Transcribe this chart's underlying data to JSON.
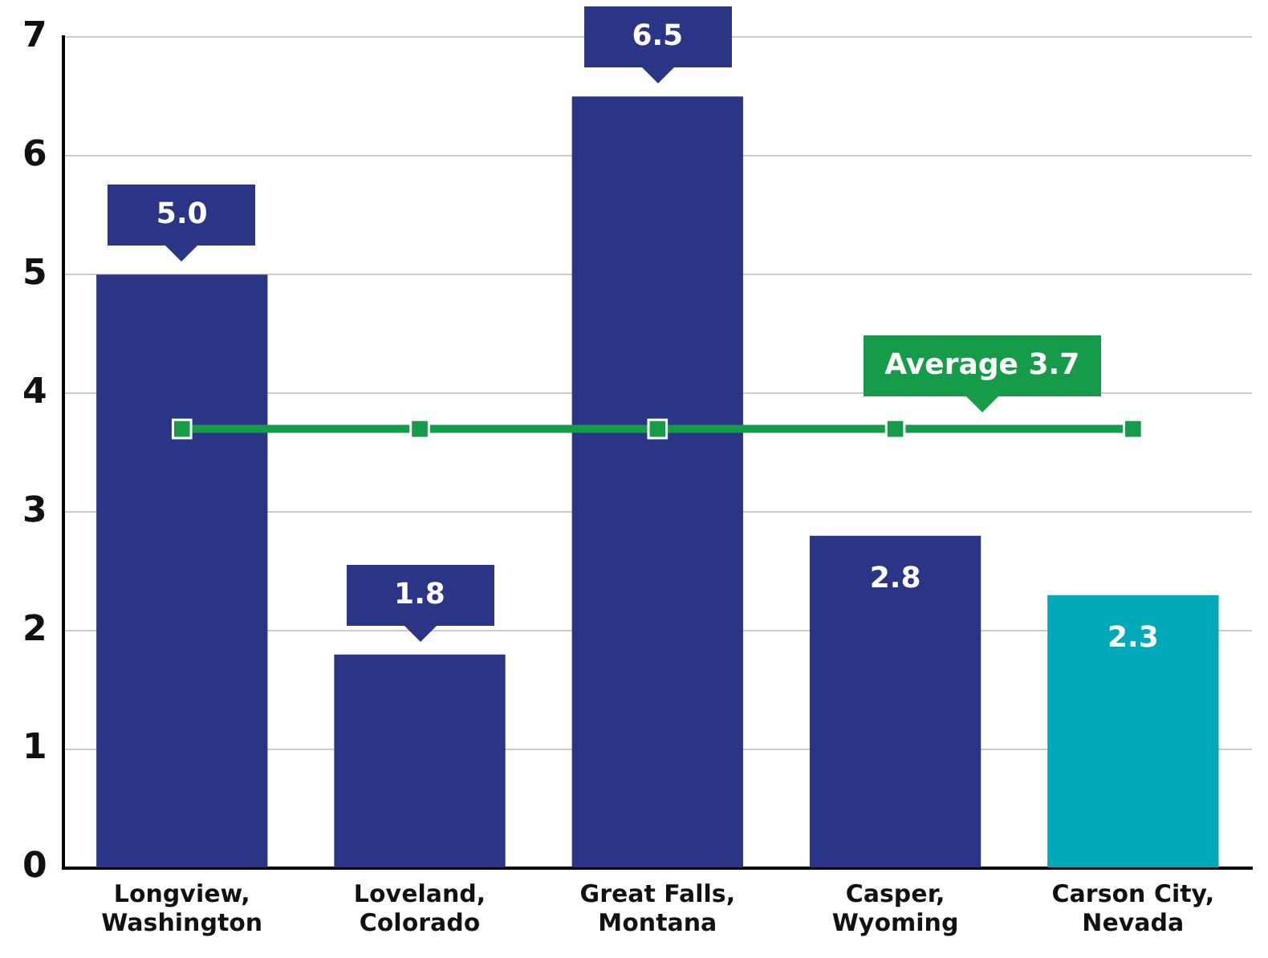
{
  "chart_data": {
    "type": "bar",
    "categories": [
      "Longview, Washington",
      "Loveland, Colorado",
      "Great Falls, Montana",
      "Casper, Wyoming",
      "Carson City, Nevada"
    ],
    "series": [
      {
        "colors": [
          "#2b3585",
          "#2b3585",
          "#2b3585",
          "#2b3585",
          "#00a9b8"
        ],
        "values": [
          5.0,
          1.8,
          6.5,
          2.8,
          2.3
        ],
        "value_labels": [
          "5.0",
          "1.8",
          "6.5",
          "2.8",
          "2.3"
        ]
      },
      {
        "type": "line",
        "color": "#169b48",
        "values": [
          3.7,
          3.7,
          3.7,
          3.7,
          3.7
        ],
        "marker": "square"
      }
    ],
    "annotations": [
      {
        "text": "Average 3.7",
        "x": "Casper, Wyoming",
        "y": 3.7
      }
    ],
    "ylim": [
      0,
      7
    ],
    "yticks": [
      0,
      1,
      2,
      3,
      4,
      5,
      6,
      7
    ],
    "grid": "y",
    "legend": false
  }
}
